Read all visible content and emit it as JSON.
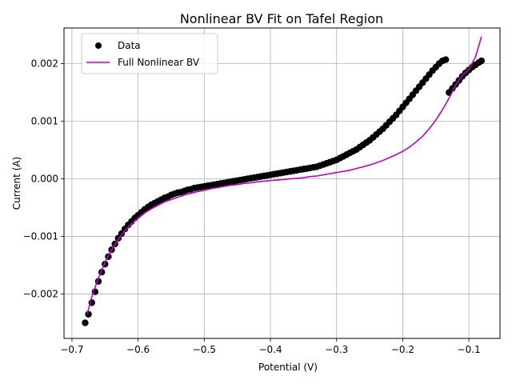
{
  "chart_data": {
    "type": "scatter",
    "title": "Nonlinear BV Fit on Tafel Region",
    "xlabel": "Potential (V)",
    "ylabel": "Current (A)",
    "xlim": [
      -0.712,
      -0.053
    ],
    "ylim": [
      -0.00277,
      0.00262
    ],
    "xticks": [
      -0.7,
      -0.6,
      -0.5,
      -0.4,
      -0.3,
      -0.2,
      -0.1
    ],
    "xtick_labels": [
      "−0.7",
      "−0.6",
      "−0.5",
      "−0.4",
      "−0.3",
      "−0.2",
      "−0.1"
    ],
    "yticks": [
      -0.002,
      -0.001,
      0.0,
      0.001,
      0.002
    ],
    "ytick_labels": [
      "−0.002",
      "−0.001",
      "0.000",
      "0.001",
      "0.002"
    ],
    "grid": true,
    "legend_position": "upper-left",
    "series": [
      {
        "name": "Data",
        "kind": "markers",
        "color": "#000000",
        "x": [
          -0.68,
          -0.675,
          -0.67,
          -0.665,
          -0.66,
          -0.655,
          -0.65,
          -0.645,
          -0.64,
          -0.635,
          -0.63,
          -0.625,
          -0.62,
          -0.615,
          -0.61,
          -0.605,
          -0.6,
          -0.595,
          -0.59,
          -0.585,
          -0.58,
          -0.575,
          -0.57,
          -0.565,
          -0.56,
          -0.555,
          -0.55,
          -0.545,
          -0.54,
          -0.535,
          -0.53,
          -0.525,
          -0.52,
          -0.515,
          -0.51,
          -0.505,
          -0.5,
          -0.495,
          -0.49,
          -0.485,
          -0.48,
          -0.475,
          -0.47,
          -0.465,
          -0.46,
          -0.455,
          -0.45,
          -0.445,
          -0.44,
          -0.435,
          -0.43,
          -0.425,
          -0.42,
          -0.415,
          -0.41,
          -0.405,
          -0.4,
          -0.395,
          -0.39,
          -0.385,
          -0.38,
          -0.375,
          -0.37,
          -0.365,
          -0.36,
          -0.355,
          -0.35,
          -0.345,
          -0.34,
          -0.335,
          -0.33,
          -0.325,
          -0.32,
          -0.315,
          -0.31,
          -0.305,
          -0.3,
          -0.295,
          -0.29,
          -0.285,
          -0.28,
          -0.275,
          -0.27,
          -0.265,
          -0.26,
          -0.255,
          -0.25,
          -0.245,
          -0.24,
          -0.235,
          -0.23,
          -0.225,
          -0.22,
          -0.215,
          -0.21,
          -0.205,
          -0.2,
          -0.195,
          -0.19,
          -0.185,
          -0.18,
          -0.175,
          -0.17,
          -0.165,
          -0.16,
          -0.155,
          -0.15,
          -0.145,
          -0.14,
          -0.135,
          -0.13,
          -0.125,
          -0.12,
          -0.115,
          -0.11,
          -0.105,
          -0.1,
          -0.095,
          -0.09,
          -0.085,
          -0.081
        ],
        "y": [
          -0.0025,
          -0.00235,
          -0.00215,
          -0.00196,
          -0.00178,
          -0.00162,
          -0.00148,
          -0.00135,
          -0.00123,
          -0.00113,
          -0.00103,
          -0.00095,
          -0.00087,
          -0.0008,
          -0.00074,
          -0.00068,
          -0.00063,
          -0.00058,
          -0.00053,
          -0.00049,
          -0.00045,
          -0.00042,
          -0.00039,
          -0.00036,
          -0.00033,
          -0.00031,
          -0.00028,
          -0.00026,
          -0.00024,
          -0.00023,
          -0.00021,
          -0.00019,
          -0.00018,
          -0.00016,
          -0.00015,
          -0.00014,
          -0.00013,
          -0.00012,
          -0.00011,
          -0.0001,
          -9e-05,
          -8e-05,
          -7e-05,
          -6e-05,
          -5e-05,
          -4e-05,
          -3e-05,
          -2e-05,
          -1e-05,
          0.0,
          1e-05,
          2e-05,
          3e-05,
          4e-05,
          5e-05,
          6e-05,
          7e-05,
          8e-05,
          9e-05,
          0.0001,
          0.00011,
          0.00012,
          0.00013,
          0.00014,
          0.00015,
          0.00016,
          0.00017,
          0.00018,
          0.00019,
          0.0002,
          0.00021,
          0.00023,
          0.00025,
          0.00027,
          0.00029,
          0.00031,
          0.00033,
          0.00036,
          0.00039,
          0.00042,
          0.00045,
          0.00048,
          0.00051,
          0.00055,
          0.00059,
          0.00063,
          0.00067,
          0.00072,
          0.00077,
          0.00082,
          0.00087,
          0.00093,
          0.00099,
          0.00105,
          0.00111,
          0.00118,
          0.00125,
          0.00132,
          0.00139,
          0.00146,
          0.00153,
          0.0016,
          0.00167,
          0.00174,
          0.00181,
          0.00188,
          0.00194,
          0.002,
          0.00205,
          0.00207,
          0.0015,
          0.00157,
          0.00164,
          0.00171,
          0.00178,
          0.00184,
          0.00189,
          0.00194,
          0.00198,
          0.00202,
          0.00205
        ]
      },
      {
        "name": "Full Nonlinear BV",
        "kind": "line",
        "color": "#bf00bf",
        "x": [
          -0.677,
          -0.67,
          -0.66,
          -0.65,
          -0.64,
          -0.63,
          -0.62,
          -0.61,
          -0.6,
          -0.59,
          -0.58,
          -0.57,
          -0.56,
          -0.55,
          -0.54,
          -0.53,
          -0.52,
          -0.51,
          -0.5,
          -0.49,
          -0.48,
          -0.47,
          -0.46,
          -0.45,
          -0.44,
          -0.43,
          -0.42,
          -0.41,
          -0.4,
          -0.39,
          -0.38,
          -0.37,
          -0.36,
          -0.35,
          -0.34,
          -0.33,
          -0.32,
          -0.31,
          -0.3,
          -0.29,
          -0.28,
          -0.27,
          -0.26,
          -0.25,
          -0.24,
          -0.23,
          -0.22,
          -0.21,
          -0.2,
          -0.19,
          -0.18,
          -0.17,
          -0.16,
          -0.15,
          -0.14,
          -0.13,
          -0.12,
          -0.11,
          -0.1,
          -0.09,
          -0.081
        ],
        "y": [
          -0.00235,
          -0.00205,
          -0.00172,
          -0.00145,
          -0.00123,
          -0.00105,
          -0.0009,
          -0.00078,
          -0.00068,
          -0.00059,
          -0.00052,
          -0.00046,
          -0.0004,
          -0.00036,
          -0.00032,
          -0.00028,
          -0.00025,
          -0.00022,
          -0.0002,
          -0.00017,
          -0.00015,
          -0.00013,
          -0.00011,
          -0.0001,
          -8e-05,
          -7e-05,
          -5e-05,
          -4e-05,
          -3e-05,
          -2e-05,
          -1e-05,
          0.0,
          1e-05,
          2e-05,
          4e-05,
          5e-05,
          7e-05,
          9e-05,
          0.00011,
          0.00013,
          0.00015,
          0.00018,
          0.00021,
          0.00024,
          0.00028,
          0.00032,
          0.00037,
          0.00042,
          0.00048,
          0.00055,
          0.00064,
          0.00074,
          0.00087,
          0.00102,
          0.0012,
          0.0014,
          0.00163,
          0.0018,
          0.0019,
          0.00212,
          0.00247
        ]
      }
    ]
  }
}
